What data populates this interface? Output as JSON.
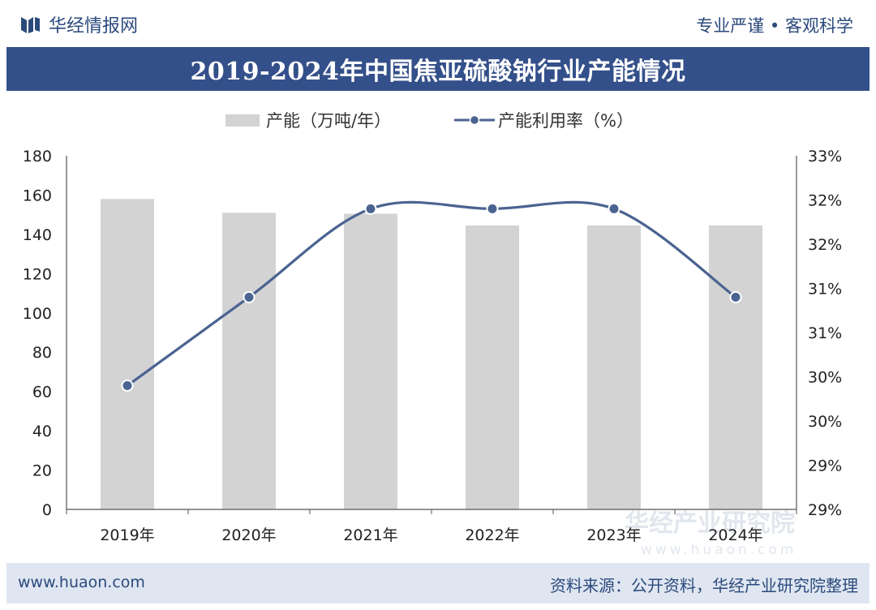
{
  "header": {
    "brand": "华经情报网",
    "motto": "专业严谨 • 客观科学",
    "title": "2019-2024年中国焦亚硫酸钠行业产能情况"
  },
  "footer": {
    "website": "www.huaon.com",
    "source": "资料来源：公开资料，华经产业研究院整理"
  },
  "watermark": {
    "name": "华经产业研究院",
    "url": "www.huaon.com"
  },
  "colors": {
    "bar": "#d3d3d3",
    "line": "#4a6391",
    "title_bg": "#34508a",
    "brand": "#2b4a7c"
  },
  "chart_data": {
    "type": "bar",
    "categories": [
      "2019年",
      "2020年",
      "2021年",
      "2022年",
      "2023年",
      "2024年"
    ],
    "series": [
      {
        "name": "产能（万吨/年）",
        "type": "bar",
        "axis": "left",
        "values": [
          158,
          151,
          150.5,
          144.5,
          144.5,
          144.5
        ]
      },
      {
        "name": "产能利用率（%）",
        "type": "line",
        "axis": "right",
        "values": [
          29.9,
          30.9,
          31.9,
          31.9,
          31.9,
          30.9
        ]
      }
    ],
    "left_axis": {
      "min": 0,
      "max": 180,
      "ticks": [
        "0",
        "20",
        "40",
        "60",
        "80",
        "100",
        "120",
        "140",
        "160",
        "180"
      ]
    },
    "right_axis": {
      "min": 28.5,
      "max": 32.5,
      "ticks": [
        "29%",
        "29%",
        "30%",
        "30%",
        "31%",
        "31%",
        "32%",
        "32%",
        "33%"
      ]
    },
    "legend_position": "top-center",
    "grid": false
  }
}
